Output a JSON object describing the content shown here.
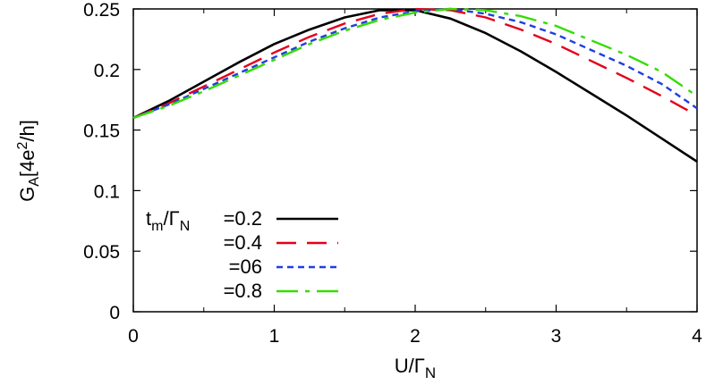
{
  "chart_data": {
    "type": "line",
    "xlabel": {
      "main": "U/Γ",
      "sub": "N"
    },
    "ylabel": {
      "main": "G",
      "sub": "A",
      "mid": "[4e",
      "sup": "2",
      "tail": "/h]"
    },
    "xlim": [
      0,
      4
    ],
    "ylim": [
      0,
      0.25
    ],
    "xticks": [
      0,
      1,
      2,
      3,
      4
    ],
    "xtick_labels": [
      "0",
      "1",
      "2",
      "3",
      "4"
    ],
    "yticks": [
      0,
      0.05,
      0.1,
      0.15,
      0.2,
      0.25
    ],
    "ytick_labels": [
      "0",
      "0.05",
      "0.1",
      "0.15",
      "0.2",
      "0.25"
    ],
    "grid": false,
    "legend_position": "bottom-left",
    "legend_prefix": {
      "t": "t",
      "t_sub": "m",
      "slash": "/Γ",
      "gamma_sub": "N"
    },
    "series": [
      {
        "name": "=0.2",
        "color": "#000000",
        "style": "solid",
        "x": [
          0,
          0.25,
          0.5,
          0.75,
          1.0,
          1.25,
          1.5,
          1.75,
          2.0,
          2.25,
          2.5,
          2.75,
          3.0,
          3.25,
          3.5,
          3.75,
          4.0
        ],
        "y": [
          0.16,
          0.174,
          0.19,
          0.206,
          0.221,
          0.233,
          0.243,
          0.249,
          0.249,
          0.242,
          0.23,
          0.215,
          0.198,
          0.18,
          0.162,
          0.143,
          0.124
        ]
      },
      {
        "name": "=0.4",
        "color": "#e3001b",
        "style": "long-dash",
        "x": [
          0,
          0.25,
          0.5,
          0.75,
          1.0,
          1.25,
          1.5,
          1.75,
          2.0,
          2.25,
          2.5,
          2.75,
          3.0,
          3.25,
          3.5,
          3.75,
          4.0
        ],
        "y": [
          0.16,
          0.172,
          0.186,
          0.2,
          0.214,
          0.227,
          0.238,
          0.246,
          0.25,
          0.249,
          0.243,
          0.233,
          0.221,
          0.207,
          0.193,
          0.178,
          0.162
        ]
      },
      {
        "name": "=06",
        "color": "#1f3fdf",
        "style": "short-dash",
        "x": [
          0,
          0.25,
          0.5,
          0.75,
          1.0,
          1.25,
          1.5,
          1.75,
          2.0,
          2.25,
          2.5,
          2.75,
          3.0,
          3.25,
          3.5,
          3.75,
          4.0
        ],
        "y": [
          0.16,
          0.171,
          0.184,
          0.197,
          0.21,
          0.223,
          0.234,
          0.243,
          0.248,
          0.25,
          0.246,
          0.239,
          0.229,
          0.216,
          0.203,
          0.188,
          0.168
        ]
      },
      {
        "name": "=0.8",
        "color": "#33dd00",
        "style": "dash-dot",
        "x": [
          0,
          0.25,
          0.5,
          0.75,
          1.0,
          1.25,
          1.5,
          1.75,
          2.0,
          2.25,
          2.5,
          2.75,
          3.0,
          3.25,
          3.5,
          3.75,
          4.0
        ],
        "y": [
          0.16,
          0.17,
          0.182,
          0.195,
          0.208,
          0.221,
          0.232,
          0.241,
          0.247,
          0.25,
          0.249,
          0.244,
          0.236,
          0.224,
          0.212,
          0.198,
          0.178
        ]
      }
    ]
  }
}
